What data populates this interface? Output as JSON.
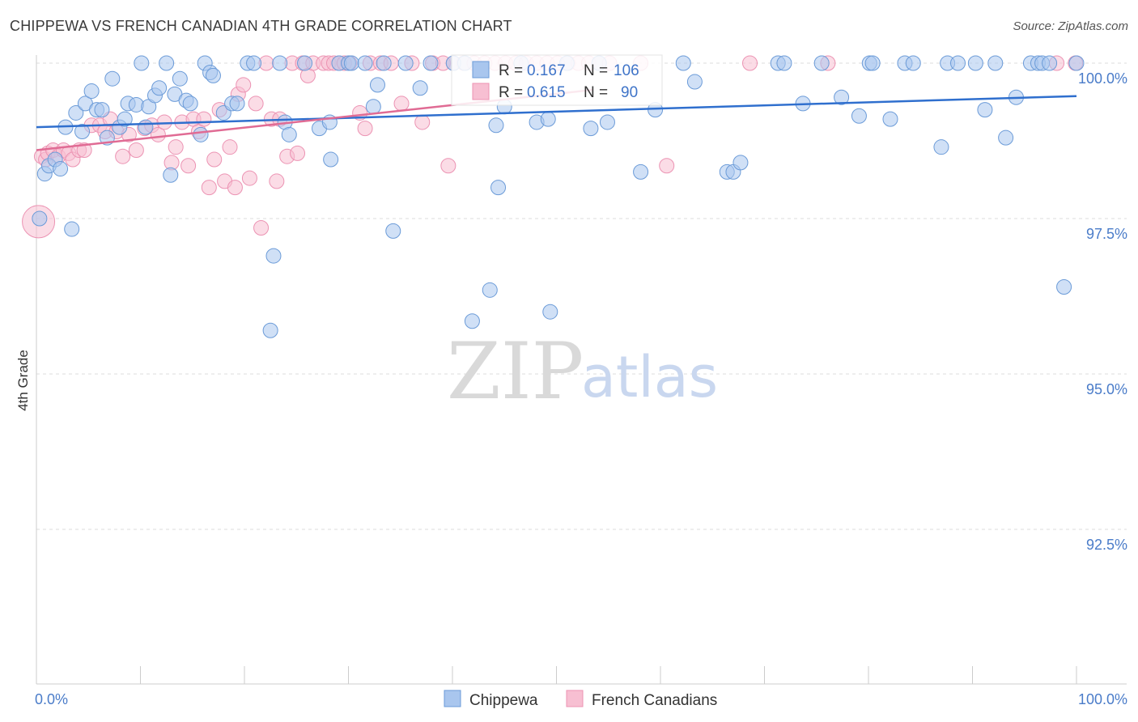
{
  "header": {
    "title": "CHIPPEWA VS FRENCH CANADIAN 4TH GRADE CORRELATION CHART",
    "source": "Source: ZipAtlas.com"
  },
  "watermark": {
    "zip": "ZIP",
    "atlas": "atlas"
  },
  "colors": {
    "blue_fill": "#a9c6ee",
    "blue_stroke": "#6b9bd8",
    "blue_line": "#2f6fce",
    "pink_fill": "#f7bfd2",
    "pink_stroke": "#ec93b3",
    "pink_line": "#e06b94",
    "tick_text": "#4a7cc9",
    "grid": "#dddddd"
  },
  "legend_top": {
    "rows": [
      {
        "r_label": "R =",
        "r_value": "0.167",
        "n_label": "N =",
        "n_value": "106"
      },
      {
        "r_label": "R =",
        "r_value": "0.615",
        "n_label": "N =",
        "n_value": "90"
      }
    ]
  },
  "legend_bottom": {
    "items": [
      "Chippewa",
      "French Canadians"
    ]
  },
  "chart_data": {
    "type": "scatter",
    "title": "CHIPPEWA VS FRENCH CANADIAN 4TH GRADE CORRELATION CHART",
    "xlabel": "",
    "ylabel": "4th Grade",
    "xlim": [
      0,
      100
    ],
    "ylim": [
      90.2,
      100.4
    ],
    "x_tick_labels": [
      "0.0%",
      "100.0%"
    ],
    "y_ticks": [
      92.5,
      95.0,
      97.5,
      100.0
    ],
    "y_tick_labels": [
      "92.5%",
      "95.0%",
      "97.5%",
      "100.0%"
    ],
    "grid": true,
    "legend_position": "bottom",
    "series": [
      {
        "name": "Chippewa",
        "color": "#a9c6ee",
        "R": 0.167,
        "N": 106,
        "trend": {
          "x": [
            0,
            100
          ],
          "y": [
            98.97,
            99.47
          ]
        },
        "points": [
          [
            0.3,
            97.5
          ],
          [
            0.8,
            98.22
          ],
          [
            1.2,
            98.35
          ],
          [
            1.8,
            98.45
          ],
          [
            2.3,
            98.3
          ],
          [
            2.8,
            98.97
          ],
          [
            3.4,
            97.33
          ],
          [
            3.8,
            99.2
          ],
          [
            4.4,
            98.9
          ],
          [
            4.7,
            99.35
          ],
          [
            5.3,
            99.55
          ],
          [
            5.8,
            99.25
          ],
          [
            6.3,
            99.25
          ],
          [
            6.8,
            98.8
          ],
          [
            7.3,
            99.75
          ],
          [
            8.0,
            98.97
          ],
          [
            8.5,
            99.1
          ],
          [
            8.8,
            99.35
          ],
          [
            9.6,
            99.33
          ],
          [
            10.1,
            100.0
          ],
          [
            10.5,
            98.97
          ],
          [
            10.8,
            99.3
          ],
          [
            11.4,
            99.48
          ],
          [
            11.8,
            99.6
          ],
          [
            12.5,
            100.0
          ],
          [
            12.9,
            98.2
          ],
          [
            13.3,
            99.5
          ],
          [
            13.8,
            99.75
          ],
          [
            14.4,
            99.4
          ],
          [
            14.8,
            99.35
          ],
          [
            15.8,
            98.85
          ],
          [
            16.2,
            100.0
          ],
          [
            16.7,
            99.85
          ],
          [
            17.0,
            99.8
          ],
          [
            18.0,
            99.2
          ],
          [
            18.8,
            99.35
          ],
          [
            19.3,
            99.35
          ],
          [
            20.3,
            100.0
          ],
          [
            20.9,
            100.0
          ],
          [
            22.5,
            95.7
          ],
          [
            22.8,
            96.9
          ],
          [
            23.4,
            100.0
          ],
          [
            23.9,
            99.05
          ],
          [
            24.3,
            98.85
          ],
          [
            25.8,
            100.0
          ],
          [
            27.2,
            98.95
          ],
          [
            28.2,
            99.05
          ],
          [
            28.3,
            98.45
          ],
          [
            29.1,
            100.0
          ],
          [
            30.0,
            100.0
          ],
          [
            30.3,
            100.0
          ],
          [
            31.6,
            100.0
          ],
          [
            32.4,
            99.3
          ],
          [
            32.8,
            99.65
          ],
          [
            33.4,
            100.0
          ],
          [
            34.3,
            97.3
          ],
          [
            35.5,
            100.0
          ],
          [
            36.9,
            99.6
          ],
          [
            37.9,
            100.0
          ],
          [
            40.1,
            100.0
          ],
          [
            41.2,
            100.0
          ],
          [
            41.9,
            95.85
          ],
          [
            43.6,
            96.35
          ],
          [
            44.2,
            99.0
          ],
          [
            44.4,
            98.0
          ],
          [
            45.0,
            99.3
          ],
          [
            46.6,
            100.0
          ],
          [
            48.1,
            99.05
          ],
          [
            49.2,
            99.1
          ],
          [
            49.4,
            96.0
          ],
          [
            51.0,
            100.0
          ],
          [
            53.3,
            98.95
          ],
          [
            54.1,
            100.0
          ],
          [
            54.9,
            99.05
          ],
          [
            58.1,
            98.25
          ],
          [
            59.5,
            99.25
          ],
          [
            62.2,
            100.0
          ],
          [
            63.3,
            99.7
          ],
          [
            66.4,
            98.25
          ],
          [
            67.0,
            98.25
          ],
          [
            67.7,
            98.4
          ],
          [
            71.3,
            100.0
          ],
          [
            71.9,
            100.0
          ],
          [
            73.7,
            99.35
          ],
          [
            75.5,
            100.0
          ],
          [
            77.4,
            99.45
          ],
          [
            79.1,
            99.15
          ],
          [
            80.1,
            100.0
          ],
          [
            80.4,
            100.0
          ],
          [
            82.1,
            99.1
          ],
          [
            83.5,
            100.0
          ],
          [
            84.3,
            100.0
          ],
          [
            87.0,
            98.65
          ],
          [
            87.6,
            100.0
          ],
          [
            88.6,
            100.0
          ],
          [
            90.3,
            100.0
          ],
          [
            91.2,
            99.25
          ],
          [
            92.2,
            100.0
          ],
          [
            93.2,
            98.8
          ],
          [
            94.2,
            99.45
          ],
          [
            95.6,
            100.0
          ],
          [
            96.3,
            100.0
          ],
          [
            96.7,
            100.0
          ],
          [
            97.4,
            100.0
          ],
          [
            98.8,
            96.4
          ],
          [
            100.0,
            100.0
          ]
        ]
      },
      {
        "name": "French Canadians",
        "color": "#f7bfd2",
        "R": 0.615,
        "N": 90,
        "trend": {
          "x": [
            0,
            53.5
          ],
          "y": [
            98.6,
            99.57
          ]
        },
        "points": [
          [
            0.2,
            97.45
          ],
          [
            0.5,
            98.5
          ],
          [
            0.9,
            98.45
          ],
          [
            1.1,
            98.55
          ],
          [
            1.6,
            98.6
          ],
          [
            2.1,
            98.5
          ],
          [
            2.6,
            98.6
          ],
          [
            3.1,
            98.55
          ],
          [
            3.5,
            98.45
          ],
          [
            4.1,
            98.6
          ],
          [
            4.6,
            98.6
          ],
          [
            5.3,
            99.0
          ],
          [
            6.1,
            99.0
          ],
          [
            6.6,
            98.9
          ],
          [
            7.1,
            99.1
          ],
          [
            7.7,
            98.9
          ],
          [
            8.3,
            98.5
          ],
          [
            8.9,
            98.85
          ],
          [
            9.6,
            98.6
          ],
          [
            10.4,
            98.95
          ],
          [
            11.1,
            99.0
          ],
          [
            11.7,
            98.85
          ],
          [
            12.3,
            99.05
          ],
          [
            13.0,
            98.4
          ],
          [
            13.4,
            98.65
          ],
          [
            14.0,
            99.05
          ],
          [
            14.6,
            98.35
          ],
          [
            15.1,
            99.1
          ],
          [
            15.6,
            98.9
          ],
          [
            16.1,
            99.1
          ],
          [
            16.6,
            98.0
          ],
          [
            17.1,
            98.45
          ],
          [
            17.6,
            99.25
          ],
          [
            18.1,
            98.1
          ],
          [
            18.6,
            98.65
          ],
          [
            19.1,
            98.0
          ],
          [
            19.4,
            99.5
          ],
          [
            19.9,
            99.65
          ],
          [
            20.5,
            98.15
          ],
          [
            21.1,
            99.35
          ],
          [
            21.6,
            97.35
          ],
          [
            22.1,
            100.0
          ],
          [
            22.6,
            99.1
          ],
          [
            23.1,
            98.1
          ],
          [
            23.4,
            99.1
          ],
          [
            24.1,
            98.5
          ],
          [
            24.6,
            100.0
          ],
          [
            25.1,
            98.55
          ],
          [
            25.6,
            100.0
          ],
          [
            26.1,
            99.8
          ],
          [
            26.6,
            100.0
          ],
          [
            27.6,
            100.0
          ],
          [
            28.1,
            100.0
          ],
          [
            28.6,
            100.0
          ],
          [
            29.1,
            100.0
          ],
          [
            29.6,
            100.0
          ],
          [
            30.1,
            100.0
          ],
          [
            31.1,
            99.2
          ],
          [
            31.6,
            98.95
          ],
          [
            32.1,
            100.0
          ],
          [
            33.1,
            100.0
          ],
          [
            34.1,
            100.0
          ],
          [
            35.1,
            99.35
          ],
          [
            36.1,
            100.0
          ],
          [
            37.1,
            99.05
          ],
          [
            38.1,
            100.0
          ],
          [
            39.1,
            100.0
          ],
          [
            39.6,
            98.35
          ],
          [
            40.1,
            100.0
          ],
          [
            41.1,
            100.0
          ],
          [
            42.1,
            100.0
          ],
          [
            43.1,
            100.0
          ],
          [
            44.1,
            100.0
          ],
          [
            45.1,
            100.0
          ],
          [
            46.1,
            100.0
          ],
          [
            47.1,
            100.0
          ],
          [
            48.1,
            100.0
          ],
          [
            49.1,
            100.0
          ],
          [
            50.1,
            100.0
          ],
          [
            51.1,
            100.0
          ],
          [
            52.1,
            100.0
          ],
          [
            53.1,
            100.0
          ],
          [
            54.1,
            100.0
          ],
          [
            55.1,
            100.0
          ],
          [
            58.1,
            100.0
          ],
          [
            60.6,
            98.35
          ],
          [
            68.6,
            100.0
          ],
          [
            76.1,
            100.0
          ],
          [
            99.9,
            100.0
          ],
          [
            98.1,
            100.0
          ]
        ]
      }
    ]
  }
}
